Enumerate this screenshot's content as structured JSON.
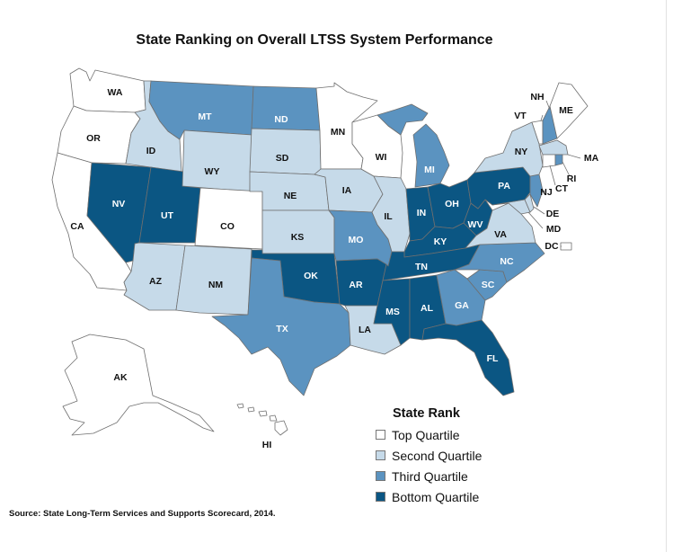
{
  "title": "State Ranking on Overall LTSS System Performance",
  "source": "Source:  State Long-Term Services and Supports Scorecard, 2014.",
  "colors": {
    "top": "#ffffff",
    "second": "#c6dae9",
    "third": "#5b93c0",
    "bottom": "#0b5683",
    "outline": "#6f6f6f"
  },
  "legend": {
    "title": "State Rank",
    "items": [
      {
        "key": "top",
        "label": "Top Quartile"
      },
      {
        "key": "second",
        "label": "Second Quartile"
      },
      {
        "key": "third",
        "label": "Third Quartile"
      },
      {
        "key": "bottom",
        "label": "Bottom Quartile"
      }
    ]
  },
  "states": [
    {
      "abbr": "WA",
      "rank": "top"
    },
    {
      "abbr": "OR",
      "rank": "top"
    },
    {
      "abbr": "CA",
      "rank": "top"
    },
    {
      "abbr": "ID",
      "rank": "second"
    },
    {
      "abbr": "NV",
      "rank": "bottom"
    },
    {
      "abbr": "UT",
      "rank": "bottom"
    },
    {
      "abbr": "AZ",
      "rank": "second"
    },
    {
      "abbr": "MT",
      "rank": "third"
    },
    {
      "abbr": "WY",
      "rank": "second"
    },
    {
      "abbr": "CO",
      "rank": "top"
    },
    {
      "abbr": "NM",
      "rank": "second"
    },
    {
      "abbr": "ND",
      "rank": "third"
    },
    {
      "abbr": "SD",
      "rank": "second"
    },
    {
      "abbr": "NE",
      "rank": "second"
    },
    {
      "abbr": "KS",
      "rank": "second"
    },
    {
      "abbr": "OK",
      "rank": "bottom"
    },
    {
      "abbr": "TX",
      "rank": "third"
    },
    {
      "abbr": "MN",
      "rank": "top"
    },
    {
      "abbr": "IA",
      "rank": "second"
    },
    {
      "abbr": "MO",
      "rank": "third"
    },
    {
      "abbr": "AR",
      "rank": "bottom"
    },
    {
      "abbr": "LA",
      "rank": "second"
    },
    {
      "abbr": "WI",
      "rank": "top"
    },
    {
      "abbr": "IL",
      "rank": "second"
    },
    {
      "abbr": "MI",
      "rank": "third"
    },
    {
      "abbr": "IN",
      "rank": "bottom"
    },
    {
      "abbr": "OH",
      "rank": "bottom"
    },
    {
      "abbr": "KY",
      "rank": "bottom"
    },
    {
      "abbr": "TN",
      "rank": "bottom"
    },
    {
      "abbr": "MS",
      "rank": "bottom"
    },
    {
      "abbr": "AL",
      "rank": "bottom"
    },
    {
      "abbr": "GA",
      "rank": "third"
    },
    {
      "abbr": "FL",
      "rank": "bottom"
    },
    {
      "abbr": "SC",
      "rank": "third"
    },
    {
      "abbr": "NC",
      "rank": "third"
    },
    {
      "abbr": "VA",
      "rank": "second"
    },
    {
      "abbr": "WV",
      "rank": "bottom"
    },
    {
      "abbr": "PA",
      "rank": "bottom"
    },
    {
      "abbr": "NY",
      "rank": "second"
    },
    {
      "abbr": "VT",
      "rank": "top"
    },
    {
      "abbr": "NH",
      "rank": "third"
    },
    {
      "abbr": "ME",
      "rank": "top"
    },
    {
      "abbr": "MA",
      "rank": "second"
    },
    {
      "abbr": "RI",
      "rank": "third"
    },
    {
      "abbr": "CT",
      "rank": "top"
    },
    {
      "abbr": "NJ",
      "rank": "third"
    },
    {
      "abbr": "DE",
      "rank": "second"
    },
    {
      "abbr": "MD",
      "rank": "second"
    },
    {
      "abbr": "DC",
      "rank": "top"
    },
    {
      "abbr": "AK",
      "rank": "top"
    },
    {
      "abbr": "HI",
      "rank": "top"
    }
  ]
}
